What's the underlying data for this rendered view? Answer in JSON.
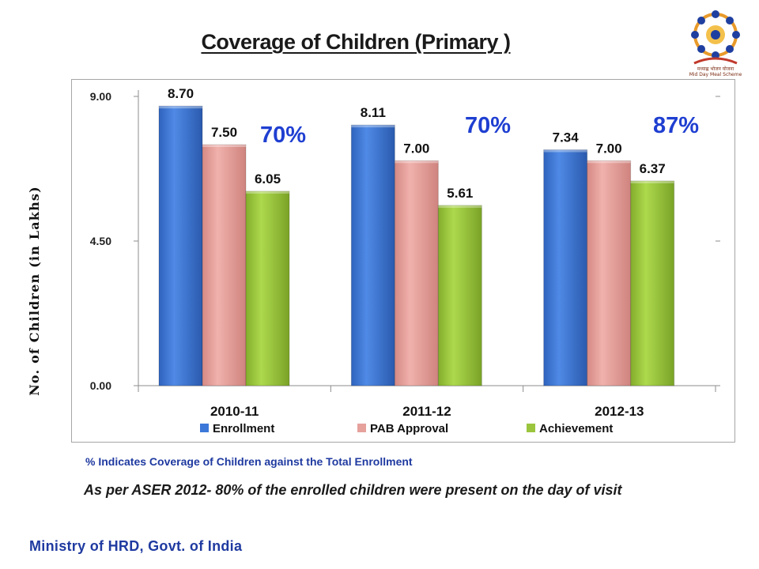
{
  "title": "Coverage of Children  (Primary )",
  "logo": {
    "name": "mid-day-meal-logo",
    "caption_hindi": "मध्याह्न भोजन योजना",
    "caption_english": "Mid Day Meal Scheme"
  },
  "y_axis_label": "No. of Children (in Lakhs)",
  "footnote": "% Indicates Coverage of Children against the Total Enrollment",
  "aser_note": "As per ASER 2012- 80% of the enrolled children were present on the day of visit",
  "ministry": "Ministry of HRD, Govt. of India",
  "colors": {
    "enrollment": "#3c78d8",
    "pab_approval": "#e6a19d",
    "achievement": "#9bc53d",
    "percent_text": "#1f3fd1"
  },
  "chart_data": {
    "type": "bar",
    "categories": [
      "2010-11",
      "2011-12",
      "2012-13"
    ],
    "series": [
      {
        "name": "Enrollment",
        "values": [
          8.7,
          8.11,
          7.34
        ]
      },
      {
        "name": "PAB Approval",
        "values": [
          7.5,
          7.0,
          7.0
        ]
      },
      {
        "name": "Achievement",
        "values": [
          6.05,
          5.61,
          6.37
        ]
      }
    ],
    "coverage_percent": [
      "70%",
      "70%",
      "87%"
    ],
    "ylim": [
      0,
      9
    ],
    "yticks": [
      "0.00",
      "4.50",
      "9.00"
    ],
    "ylabel": "No. of Children (in Lakhs)",
    "legend": "bottom",
    "grid": false
  }
}
